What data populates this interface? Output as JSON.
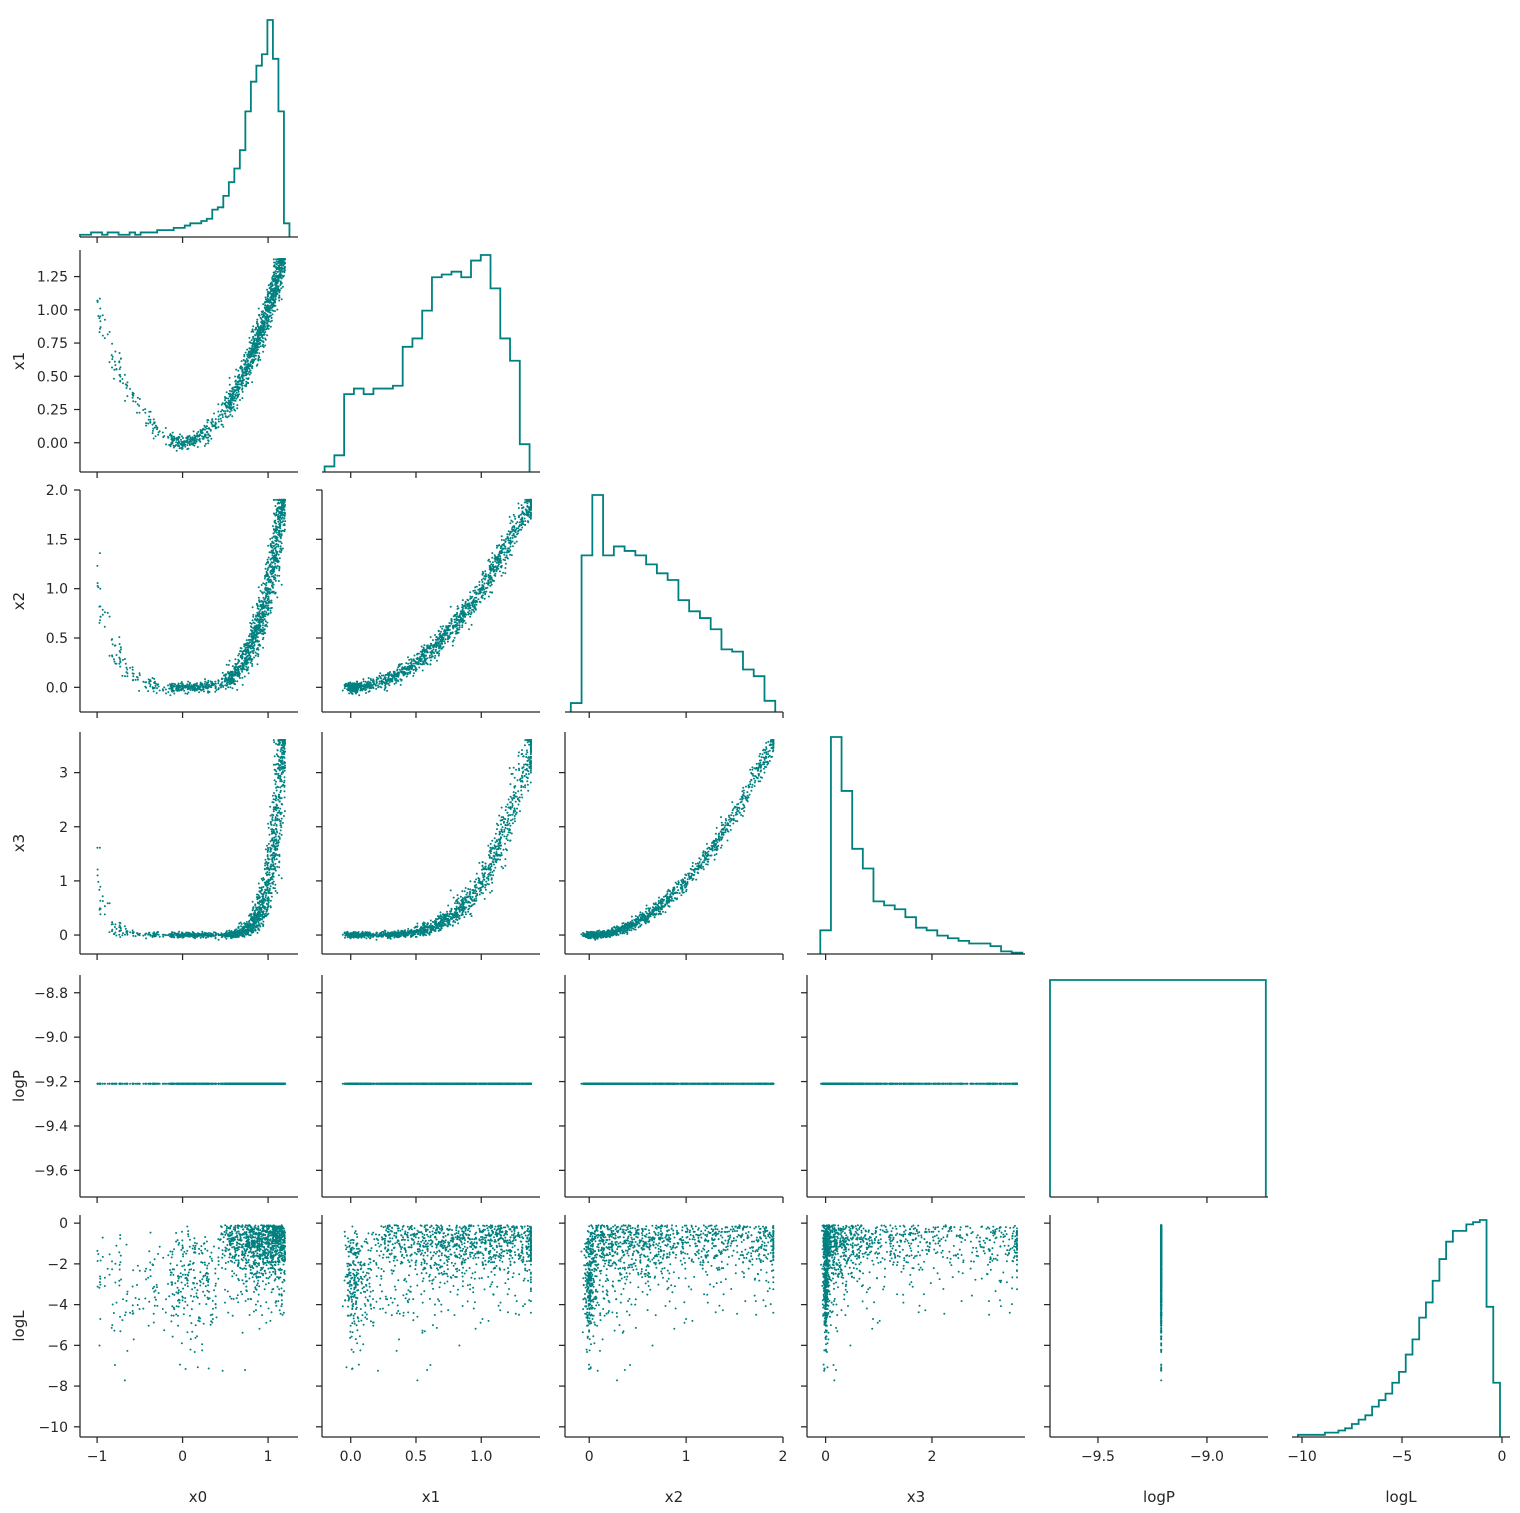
{
  "chart_data": {
    "type": "scatter",
    "layout": "corner-plot",
    "variables": [
      "x0",
      "x1",
      "x2",
      "x3",
      "logP",
      "logL"
    ],
    "color": "#008080",
    "ranges": {
      "x0": [
        -1.2,
        1.35
      ],
      "x1": [
        -0.22,
        1.45
      ],
      "x2": [
        -0.25,
        2.0
      ],
      "x3": [
        -0.35,
        3.75
      ],
      "logP": [
        -9.72,
        -8.72
      ],
      "logL": [
        -10.5,
        0.4
      ]
    },
    "ticks": {
      "x0": [
        -1,
        0,
        1
      ],
      "x1": [
        0.0,
        0.5,
        1.0
      ],
      "x2": [
        0,
        1,
        2
      ],
      "x3": [
        0,
        2
      ],
      "logP": [
        -9.5,
        -9.0
      ],
      "logL": [
        -10,
        -5,
        0
      ]
    },
    "yticks": {
      "x1": [
        0.0,
        0.25,
        0.5,
        0.75,
        1.0,
        1.25
      ],
      "x2": [
        0.0,
        0.5,
        1.0,
        1.5,
        2.0
      ],
      "x3": [
        0,
        1,
        2,
        3
      ],
      "logP": [
        -9.6,
        -9.4,
        -9.2,
        -9.0,
        -8.8
      ],
      "logL": [
        -10,
        -8,
        -6,
        -4,
        -2,
        0
      ]
    },
    "tick_labels": {
      "x0": [
        "−1",
        "0",
        "1"
      ],
      "x1": [
        "0.0",
        "0.5",
        "1.0"
      ],
      "x2": [
        "0",
        "1",
        "2"
      ],
      "x3": [
        "0",
        "2"
      ],
      "logP": [
        "−9.5",
        "−9.0"
      ],
      "logL": [
        "−10",
        "−5",
        "0"
      ]
    },
    "ytick_labels": {
      "x1": [
        "0.00",
        "0.25",
        "0.50",
        "0.75",
        "1.00",
        "1.25"
      ],
      "x2": [
        "0.0",
        "0.5",
        "1.0",
        "1.5",
        "2.0"
      ],
      "x3": [
        "0",
        "1",
        "2",
        "3"
      ],
      "logP": [
        "−9.6",
        "−9.4",
        "−9.2",
        "−9.0",
        "−8.8"
      ],
      "logL": [
        "−10",
        "−8",
        "−6",
        "−4",
        "−2",
        "0"
      ]
    },
    "histograms": {
      "x0": {
        "range": [
          -1.2,
          1.25
        ],
        "counts": [
          1,
          1,
          2,
          2,
          1,
          2,
          2,
          1,
          1,
          2,
          1,
          2,
          2,
          2,
          3,
          3,
          3,
          4,
          4,
          5,
          6,
          6,
          7,
          8,
          12,
          13,
          18,
          24,
          30,
          38,
          55,
          68,
          75,
          80,
          95,
          78,
          55,
          6
        ]
      },
      "x1": {
        "range": [
          -0.2,
          1.37
        ],
        "counts": [
          2,
          6,
          28,
          30,
          28,
          30,
          30,
          31,
          45,
          48,
          58,
          70,
          71,
          72,
          70,
          76,
          78,
          66,
          48,
          40,
          10
        ]
      },
      "x2": {
        "range": [
          -0.19,
          1.92
        ],
        "counts": [
          4,
          70,
          97,
          70,
          74,
          72,
          70,
          66,
          62,
          59,
          50,
          45,
          42,
          37,
          28,
          27,
          19,
          16,
          5
        ]
      },
      "x3": {
        "range": [
          -0.1,
          3.7
        ],
        "counts": [
          18,
          165,
          124,
          80,
          65,
          40,
          37,
          34,
          28,
          20,
          18,
          14,
          12,
          10,
          8,
          8,
          6,
          2,
          1
        ]
      },
      "logP": {
        "range": [
          -9.72,
          -8.73
        ],
        "counts": [
          1
        ]
      },
      "logL": {
        "range": [
          -10.2,
          -0.1
        ],
        "counts": [
          1,
          1,
          1,
          1,
          2,
          2,
          3,
          4,
          6,
          8,
          10,
          14,
          17,
          20,
          25,
          30,
          38,
          45,
          55,
          62,
          72,
          82,
          90,
          95,
          95,
          98,
          99,
          100,
          60,
          25
        ]
      }
    }
  }
}
